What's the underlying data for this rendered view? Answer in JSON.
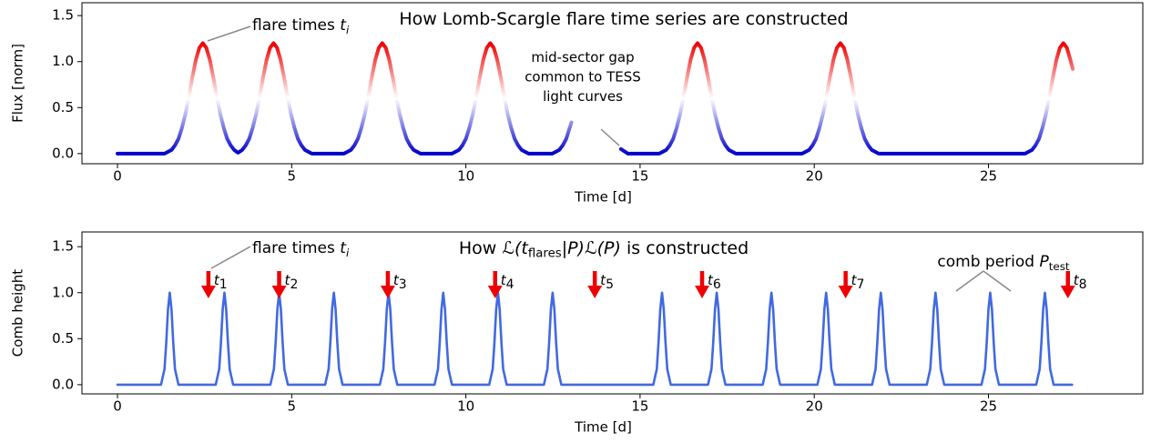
{
  "chart_data": [
    {
      "type": "line",
      "title": [
        {
          "text": "How Lomb-Scargle flare time series are constructed",
          "style": "normal"
        }
      ],
      "title_color": "#1414dc",
      "xlabel": "Time [d]",
      "ylabel": "Flux [norm]",
      "xlim": [
        -1.02,
        29.43
      ],
      "xticks": [
        0,
        5,
        10,
        15,
        20,
        25
      ],
      "ylim": [
        -0.11,
        1.64
      ],
      "yticks": [
        {
          "value": 0,
          "label": "0.0"
        },
        {
          "value": 0.5,
          "label": "0.5"
        },
        {
          "value": 1,
          "label": "1.0"
        },
        {
          "value": 1.5,
          "label": "1.5"
        }
      ],
      "colormap": [
        "#0000cc",
        "#ffffff",
        "#ee0000"
      ],
      "x": [
        0,
        1.35,
        1.55,
        1.65,
        1.75,
        1.85,
        1.95,
        2.05,
        2.15,
        2.25,
        2.35,
        2.45,
        2.55,
        2.65,
        2.75,
        2.85,
        2.95,
        3.05,
        3.15,
        3.25,
        3.35,
        3.46,
        3.58,
        3.68,
        3.78,
        3.88,
        3.98,
        4.08,
        4.18,
        4.28,
        4.38,
        4.48,
        4.58,
        4.68,
        4.78,
        4.88,
        4.98,
        5.08,
        5.18,
        5.28,
        5.38,
        5.58,
        6.5,
        6.7,
        6.8,
        6.9,
        7.0,
        7.1,
        7.2,
        7.3,
        7.4,
        7.5,
        7.6,
        7.7,
        7.8,
        7.9,
        8.0,
        8.1,
        8.2,
        8.3,
        8.4,
        8.5,
        8.7,
        9.6,
        9.8,
        9.9,
        10.0,
        10.1,
        10.2,
        10.3,
        10.4,
        10.5,
        10.6,
        10.7,
        10.8,
        10.9,
        11.0,
        11.1,
        11.2,
        11.3,
        11.4,
        11.5,
        11.6,
        11.8,
        12.48,
        12.68,
        12.78,
        12.88,
        12.98,
        13.03,
        13.7,
        14.45,
        14.65,
        15.55,
        15.75,
        15.85,
        15.95,
        16.05,
        16.15,
        16.25,
        16.35,
        16.45,
        16.55,
        16.65,
        16.75,
        16.85,
        16.95,
        17.05,
        17.15,
        17.25,
        17.35,
        17.45,
        17.55,
        17.75,
        19.65,
        19.85,
        19.95,
        20.05,
        20.15,
        20.25,
        20.35,
        20.45,
        20.55,
        20.65,
        20.75,
        20.85,
        20.95,
        21.05,
        21.15,
        21.25,
        21.35,
        21.45,
        21.55,
        21.65,
        21.85,
        26.05,
        26.25,
        26.35,
        26.45,
        26.55,
        26.65,
        26.75,
        26.85,
        26.95,
        27.05,
        27.15,
        27.25,
        27.35,
        27.42
      ],
      "values": [
        0,
        0,
        0.04,
        0.09,
        0.16,
        0.28,
        0.43,
        0.62,
        0.83,
        1.02,
        1.15,
        1.2,
        1.15,
        1.02,
        0.83,
        0.62,
        0.43,
        0.28,
        0.16,
        0.09,
        0.04,
        0.01,
        0.04,
        0.09,
        0.16,
        0.28,
        0.43,
        0.62,
        0.83,
        1.02,
        1.15,
        1.2,
        1.15,
        1.02,
        0.83,
        0.62,
        0.43,
        0.28,
        0.16,
        0.09,
        0.04,
        0,
        0,
        0.04,
        0.09,
        0.16,
        0.28,
        0.43,
        0.62,
        0.83,
        1.02,
        1.15,
        1.2,
        1.15,
        1.02,
        0.83,
        0.62,
        0.43,
        0.28,
        0.16,
        0.09,
        0.04,
        0,
        0,
        0.04,
        0.09,
        0.16,
        0.28,
        0.43,
        0.62,
        0.83,
        1.02,
        1.15,
        1.2,
        1.15,
        1.02,
        0.83,
        0.62,
        0.43,
        0.28,
        0.16,
        0.09,
        0.04,
        0,
        0,
        0.04,
        0.09,
        0.16,
        0.28,
        0.34,
        null,
        0.05,
        0,
        0,
        0.04,
        0.09,
        0.16,
        0.28,
        0.43,
        0.62,
        0.83,
        1.02,
        1.15,
        1.2,
        1.15,
        1.02,
        0.83,
        0.62,
        0.43,
        0.28,
        0.16,
        0.09,
        0.04,
        0,
        0,
        0.04,
        0.09,
        0.16,
        0.28,
        0.43,
        0.62,
        0.83,
        1.02,
        1.15,
        1.2,
        1.15,
        1.02,
        0.83,
        0.62,
        0.43,
        0.28,
        0.16,
        0.09,
        0.04,
        0,
        0,
        0.04,
        0.09,
        0.16,
        0.28,
        0.43,
        0.62,
        0.83,
        1.02,
        1.15,
        1.2,
        1.15,
        1.02,
        0.92
      ],
      "annotations": [
        {
          "color": "#ee0000",
          "parts": [
            {
              "text": "flare times ",
              "style": "normal"
            },
            {
              "text": "t",
              "style": "italic"
            },
            {
              "text": "i",
              "style": "sub-italic"
            }
          ]
        },
        {
          "color": "#000000",
          "lines": [
            "mid-sector gap",
            "common to TESS",
            "light curves"
          ]
        }
      ]
    },
    {
      "type": "line",
      "title": [
        {
          "text": "How ",
          "style": "normal"
        },
        {
          "text": "ℒ(t",
          "style": "italic"
        },
        {
          "text": "flares",
          "style": "sub"
        },
        {
          "text": "|P)ℒ(P)",
          "style": "italic"
        },
        {
          "text": " is constructed",
          "style": "normal"
        }
      ],
      "title_color": "#1414dc",
      "xlabel": "Time [d]",
      "ylabel": "Comb height",
      "xlim": [
        -1.02,
        29.43
      ],
      "xticks": [
        0,
        5,
        10,
        15,
        20,
        25
      ],
      "ylim": [
        -0.1,
        1.66
      ],
      "yticks": [
        {
          "value": 0,
          "label": "0.0"
        },
        {
          "value": 0.5,
          "label": "0.5"
        },
        {
          "value": 1,
          "label": "1.0"
        },
        {
          "value": 1.5,
          "label": "1.5"
        }
      ],
      "color": "#4169e1",
      "x": [
        0,
        1.25,
        1.35,
        1.4,
        1.45,
        1.5,
        1.55,
        1.6,
        1.65,
        1.75,
        2.82,
        2.92,
        2.97,
        3.02,
        3.07,
        3.12,
        3.17,
        3.22,
        3.32,
        4.39,
        4.49,
        4.54,
        4.59,
        4.64,
        4.69,
        4.74,
        4.79,
        4.89,
        5.96,
        6.06,
        6.11,
        6.16,
        6.21,
        6.26,
        6.31,
        6.36,
        6.46,
        7.53,
        7.63,
        7.68,
        7.73,
        7.78,
        7.83,
        7.88,
        7.93,
        8.03,
        9.1,
        9.2,
        9.25,
        9.3,
        9.35,
        9.4,
        9.45,
        9.5,
        9.6,
        10.67,
        10.77,
        10.82,
        10.87,
        10.92,
        10.97,
        11.02,
        11.07,
        11.17,
        12.24,
        12.34,
        12.39,
        12.44,
        12.49,
        12.54,
        12.59,
        12.64,
        12.74,
        15.38,
        15.48,
        15.53,
        15.58,
        15.63,
        15.68,
        15.73,
        15.78,
        15.88,
        16.95,
        17.05,
        17.1,
        17.15,
        17.2,
        17.25,
        17.3,
        17.35,
        17.45,
        18.52,
        18.62,
        18.67,
        18.72,
        18.77,
        18.82,
        18.87,
        18.92,
        19.02,
        20.09,
        20.19,
        20.24,
        20.29,
        20.34,
        20.39,
        20.44,
        20.49,
        20.59,
        21.66,
        21.76,
        21.81,
        21.86,
        21.91,
        21.96,
        22.01,
        22.06,
        22.16,
        23.23,
        23.33,
        23.38,
        23.43,
        23.48,
        23.53,
        23.58,
        23.63,
        23.73,
        24.8,
        24.9,
        24.95,
        25.0,
        25.05,
        25.1,
        25.15,
        25.2,
        25.3,
        26.37,
        26.47,
        26.52,
        26.57,
        26.62,
        26.67,
        26.72,
        26.77,
        26.87,
        27.4
      ],
      "values": [
        0,
        0,
        0.17,
        0.46,
        0.82,
        1,
        0.82,
        0.46,
        0.17,
        0,
        0,
        0.17,
        0.46,
        0.82,
        1,
        0.82,
        0.46,
        0.17,
        0,
        0,
        0.17,
        0.46,
        0.82,
        1,
        0.82,
        0.46,
        0.17,
        0,
        0,
        0.17,
        0.46,
        0.82,
        1,
        0.82,
        0.46,
        0.17,
        0,
        0,
        0.17,
        0.46,
        0.82,
        1,
        0.82,
        0.46,
        0.17,
        0,
        0,
        0.17,
        0.46,
        0.82,
        1,
        0.82,
        0.46,
        0.17,
        0,
        0,
        0.17,
        0.46,
        0.82,
        1,
        0.82,
        0.46,
        0.17,
        0,
        0,
        0.17,
        0.46,
        0.82,
        1,
        0.82,
        0.46,
        0.17,
        0,
        0,
        0.17,
        0.46,
        0.82,
        1,
        0.82,
        0.46,
        0.17,
        0,
        0,
        0.17,
        0.46,
        0.82,
        1,
        0.82,
        0.46,
        0.17,
        0,
        0,
        0.17,
        0.46,
        0.82,
        1,
        0.82,
        0.46,
        0.17,
        0,
        0,
        0.17,
        0.46,
        0.82,
        1,
        0.82,
        0.46,
        0.17,
        0,
        0,
        0.17,
        0.46,
        0.82,
        1,
        0.82,
        0.46,
        0.17,
        0,
        0,
        0.17,
        0.46,
        0.82,
        1,
        0.82,
        0.46,
        0.17,
        0,
        0,
        0.17,
        0.46,
        0.82,
        1,
        0.82,
        0.46,
        0.17,
        0,
        0,
        0.17,
        0.46,
        0.82,
        1,
        0.82,
        0.46,
        0.17,
        0,
        0
      ],
      "marker_color": "#ee0000",
      "marker_symbol": "t",
      "marker_x": [
        2.61,
        4.64,
        7.76,
        10.84,
        13.7,
        16.78,
        20.9,
        27.28
      ],
      "marker_subs": [
        "1",
        "2",
        "3",
        "4",
        "5",
        "6",
        "7",
        "8"
      ],
      "annotations": [
        {
          "color": "#ee0000",
          "parts": [
            {
              "text": "flare times ",
              "style": "normal"
            },
            {
              "text": "t",
              "style": "italic"
            },
            {
              "text": "i",
              "style": "sub-italic"
            }
          ]
        },
        {
          "color": "#000000",
          "parts": [
            {
              "text": "comb period ",
              "style": "normal"
            },
            {
              "text": "P",
              "style": "italic"
            },
            {
              "text": "test",
              "style": "sub"
            }
          ]
        }
      ]
    }
  ]
}
